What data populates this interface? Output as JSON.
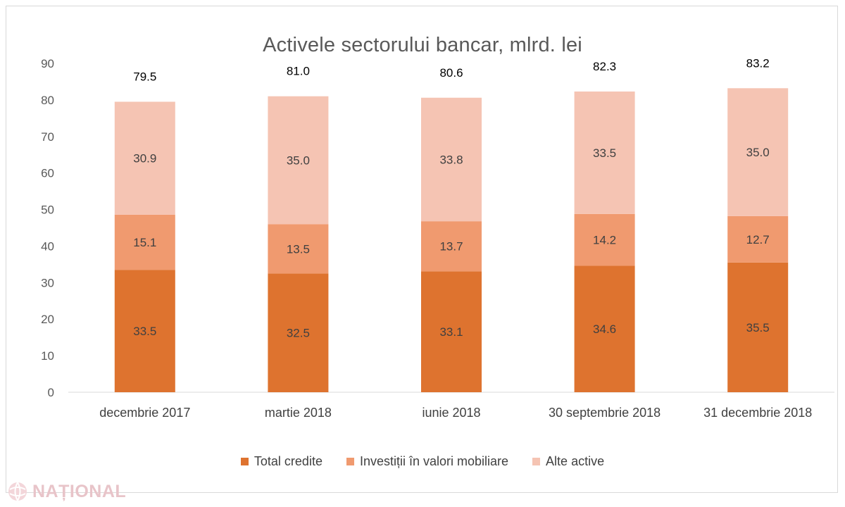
{
  "chart_data": {
    "type": "bar",
    "stacked": true,
    "title": "Activele sectorului bancar, mlrd. lei",
    "xlabel": "",
    "ylabel": "",
    "ylim": [
      0,
      90
    ],
    "yticks": [
      0,
      10,
      20,
      30,
      40,
      50,
      60,
      70,
      80,
      90
    ],
    "grid": false,
    "legend_position": "bottom",
    "categories": [
      "decembrie 2017",
      "martie 2018",
      "iunie 2018",
      "30 septembrie 2018",
      "31 decembrie 2018"
    ],
    "series": [
      {
        "name": "Total credite",
        "color": "#de732f",
        "values": [
          33.5,
          32.5,
          33.1,
          34.6,
          35.5
        ]
      },
      {
        "name": "Investiții în valori mobiliare",
        "color": "#f09a6f",
        "values": [
          15.1,
          13.5,
          13.7,
          14.2,
          12.7
        ]
      },
      {
        "name": "Alte active",
        "color": "#f5c4b3",
        "values": [
          30.9,
          35.0,
          33.8,
          33.5,
          35.0
        ]
      }
    ],
    "totals": [
      79.5,
      81.0,
      80.6,
      82.3,
      83.2
    ],
    "value_labels": [
      [
        "33.5",
        "32.5",
        "33.1",
        "34.6",
        "35.5"
      ],
      [
        "15.1",
        "13.5",
        "13.7",
        "14.2",
        "12.7"
      ],
      [
        "30.9",
        "35.0",
        "33.8",
        "33.5",
        "35.0"
      ]
    ],
    "total_labels": [
      "79.5",
      "81.0",
      "80.6",
      "82.3",
      "83.2"
    ]
  },
  "watermark": {
    "text": "NAȚIONAL"
  }
}
